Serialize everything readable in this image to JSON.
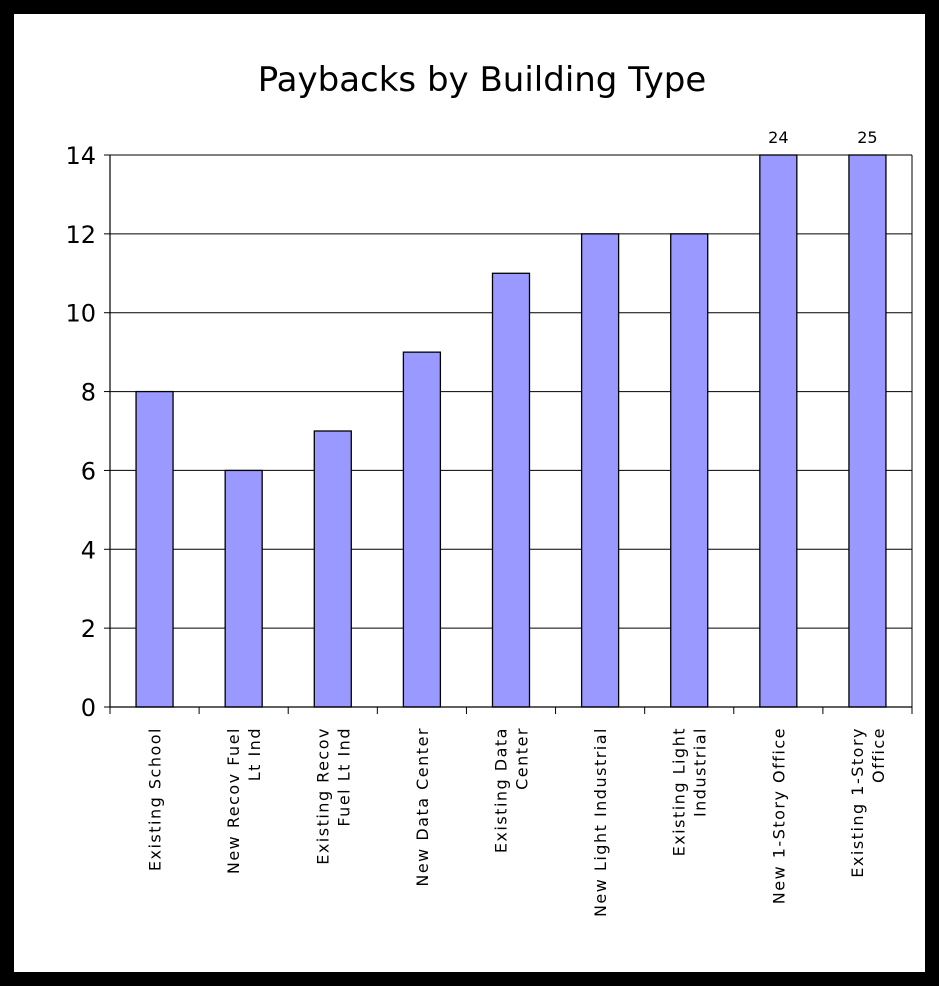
{
  "chart_data": {
    "type": "bar",
    "title": "Paybacks by Building Type",
    "xlabel": "",
    "ylabel": "",
    "categories": [
      [
        "Existing School"
      ],
      [
        "New Recov Fuel",
        "Lt Ind"
      ],
      [
        "Existing Recov",
        "Fuel Lt Ind"
      ],
      [
        "New Data Center"
      ],
      [
        "Existing Data",
        "Center"
      ],
      [
        "New Light Industrial"
      ],
      [
        "Existing Light",
        "Industrial"
      ],
      [
        "New 1-Story Office"
      ],
      [
        "Existing 1-Story",
        "Office"
      ]
    ],
    "values": [
      8,
      6,
      7,
      9,
      11,
      12,
      12,
      24,
      25
    ],
    "data_labels": [
      "",
      "",
      "",
      "",
      "",
      "",
      "",
      "24",
      "25"
    ],
    "ylim": [
      0,
      14
    ],
    "yticks": [
      0,
      2,
      4,
      6,
      8,
      10,
      12,
      14
    ],
    "grid": true,
    "legend": "none",
    "bar_color": "#9999FF",
    "bar_outline": "#000000"
  }
}
